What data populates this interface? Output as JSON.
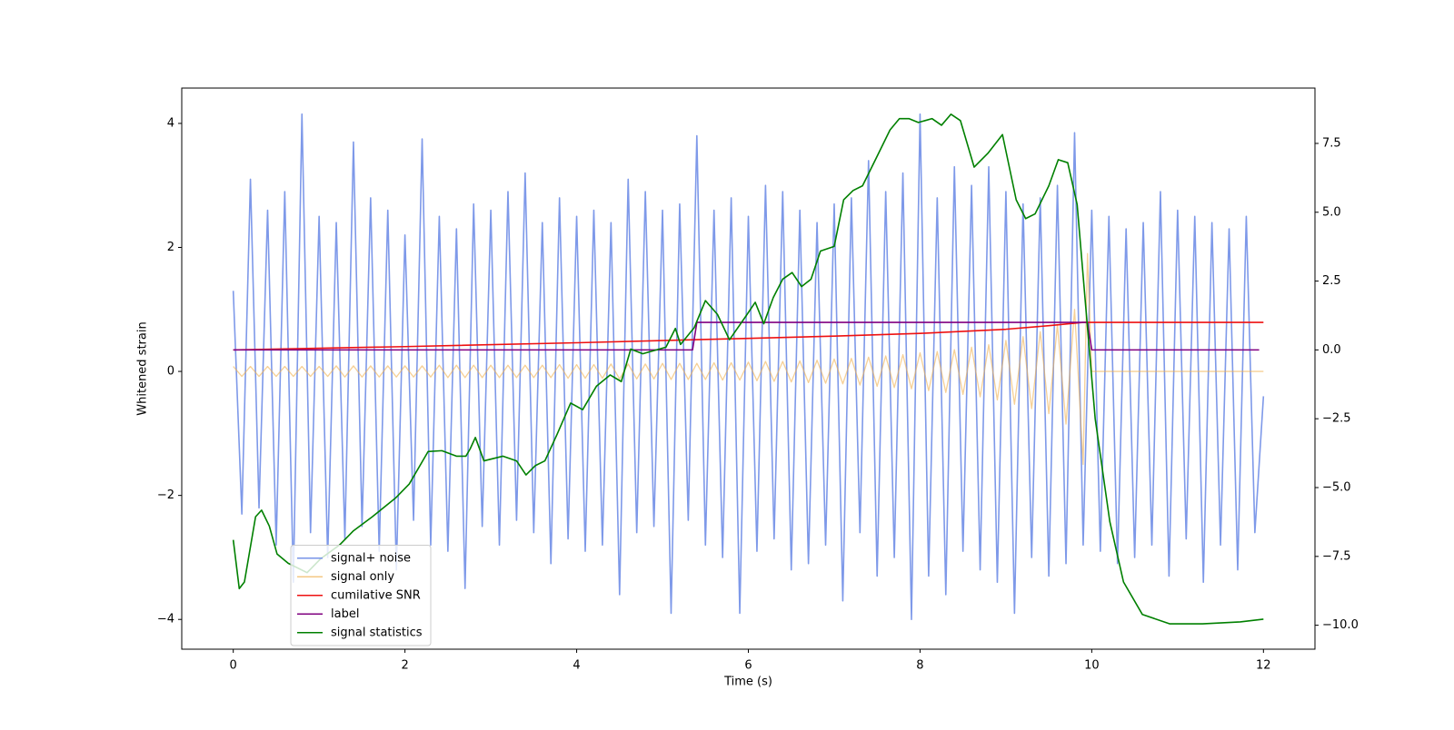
{
  "chart_data": {
    "type": "line",
    "x_label": "Time (s)",
    "y_label": "Whitened strain",
    "xlim": [
      -0.6,
      12.6
    ],
    "xticks": [
      0,
      2,
      4,
      6,
      8,
      10,
      12
    ],
    "ylim": [
      -4.48,
      4.57
    ],
    "yticks": [
      {
        "value": -4,
        "label": "−4"
      },
      {
        "value": -2,
        "label": "−2"
      },
      0,
      2,
      4
    ],
    "y2lim": [
      -10.87,
      9.51
    ],
    "y2ticks": [
      {
        "value": -10,
        "label": "−10.0"
      },
      {
        "value": -7.5,
        "label": "−7.5"
      },
      {
        "value": -5,
        "label": "−5.0"
      },
      {
        "value": -2.5,
        "label": "−2.5"
      },
      {
        "value": 0,
        "label": "0.0"
      },
      {
        "value": 2.5,
        "label": "2.5"
      },
      {
        "value": 5,
        "label": "5.0"
      },
      {
        "value": 7.5,
        "label": "7.5"
      }
    ],
    "grid": false,
    "legend": "lower left",
    "series": [
      {
        "name": "signal+ noise",
        "color": "#7793e8",
        "x": [
          0,
          0.1,
          0.2,
          0.3,
          0.4,
          0.5,
          0.6,
          0.7,
          0.8,
          0.9,
          1,
          1.1,
          1.2,
          1.3,
          1.4,
          1.5,
          1.6,
          1.7,
          1.8,
          1.9,
          2,
          2.1,
          2.2,
          2.3,
          2.4,
          2.5,
          2.6,
          2.7,
          2.8,
          2.9,
          3,
          3.1,
          3.2,
          3.3,
          3.4,
          3.5,
          3.6,
          3.7,
          3.8,
          3.9,
          4,
          4.1,
          4.2,
          4.3,
          4.4,
          4.5,
          4.6,
          4.7,
          4.8,
          4.9,
          5,
          5.1,
          5.2,
          5.3,
          5.4,
          5.5,
          5.6,
          5.7,
          5.8,
          5.9,
          6,
          6.1,
          6.2,
          6.3,
          6.4,
          6.5,
          6.6,
          6.7,
          6.8,
          6.9,
          7,
          7.1,
          7.2,
          7.3,
          7.4,
          7.5,
          7.6,
          7.7,
          7.8,
          7.9,
          8,
          8.1,
          8.2,
          8.3,
          8.4,
          8.5,
          8.6,
          8.7,
          8.8,
          8.9,
          9,
          9.1,
          9.2,
          9.3,
          9.4,
          9.5,
          9.6,
          9.7,
          9.8,
          9.9,
          10,
          10.1,
          10.2,
          10.3,
          10.4,
          10.5,
          10.6,
          10.7,
          10.8,
          10.9,
          11,
          11.1,
          11.2,
          11.3,
          11.4,
          11.5,
          11.6,
          11.7,
          11.8,
          11.9,
          12
        ],
        "values": [
          1.3,
          -2.3,
          3.1,
          -2.2,
          2.6,
          -2.8,
          2.9,
          -3.4,
          4.15,
          -2.6,
          2.5,
          -3.0,
          2.4,
          -2.7,
          3.7,
          -2.5,
          2.8,
          -2.9,
          2.6,
          -3.2,
          2.2,
          -2.4,
          3.75,
          -2.8,
          2.5,
          -2.9,
          2.3,
          -3.5,
          2.7,
          -2.5,
          2.6,
          -2.8,
          2.9,
          -2.4,
          3.2,
          -2.6,
          2.4,
          -3.1,
          2.8,
          -2.7,
          2.5,
          -2.9,
          2.6,
          -2.8,
          2.4,
          -3.6,
          3.1,
          -2.6,
          2.9,
          -2.5,
          2.6,
          -3.9,
          2.7,
          -2.4,
          3.8,
          -2.8,
          2.6,
          -3.0,
          2.8,
          -3.9,
          2.5,
          -2.9,
          3.0,
          -2.7,
          2.9,
          -3.2,
          2.6,
          -3.1,
          2.4,
          -2.8,
          2.7,
          -3.7,
          2.8,
          -2.6,
          3.4,
          -3.3,
          2.9,
          -3.0,
          3.2,
          -4.0,
          4.15,
          -3.3,
          2.8,
          -3.6,
          3.3,
          -2.9,
          3.0,
          -3.2,
          3.3,
          -3.4,
          2.9,
          -3.9,
          2.7,
          -3.0,
          2.8,
          -3.3,
          3.0,
          -3.1,
          3.85,
          -2.8,
          2.6,
          -2.9,
          2.5,
          -3.1,
          2.3,
          -3.0,
          2.4,
          -2.8,
          2.9,
          -3.3,
          2.6,
          -2.7,
          2.5,
          -3.4,
          2.4,
          -2.8,
          2.3,
          -3.2,
          2.5,
          -2.6,
          -0.4
        ]
      },
      {
        "name": "signal only",
        "color": "#f0b050",
        "x": [
          0,
          0.1,
          0.2,
          0.3,
          0.4,
          0.5,
          0.6,
          0.7,
          0.8,
          0.9,
          1,
          1.1,
          1.2,
          1.3,
          1.4,
          1.5,
          1.6,
          1.7,
          1.8,
          1.9,
          2,
          2.1,
          2.2,
          2.3,
          2.4,
          2.5,
          2.6,
          2.7,
          2.8,
          2.9,
          3,
          3.1,
          3.2,
          3.3,
          3.4,
          3.5,
          3.6,
          3.7,
          3.8,
          3.9,
          4,
          4.1,
          4.2,
          4.3,
          4.4,
          4.5,
          4.6,
          4.7,
          4.8,
          4.9,
          5,
          5.1,
          5.2,
          5.3,
          5.4,
          5.5,
          5.6,
          5.7,
          5.8,
          5.9,
          6,
          6.1,
          6.2,
          6.3,
          6.4,
          6.5,
          6.6,
          6.7,
          6.8,
          6.9,
          7,
          7.1,
          7.2,
          7.3,
          7.4,
          7.5,
          7.6,
          7.7,
          7.8,
          7.9,
          8,
          8.1,
          8.2,
          8.3,
          8.4,
          8.5,
          8.6,
          8.7,
          8.8,
          8.9,
          9,
          9.1,
          9.2,
          9.3,
          9.4,
          9.5,
          9.6,
          9.7,
          9.8,
          9.9,
          9.95,
          10,
          12
        ],
        "values": [
          0.08,
          -0.08,
          0.08,
          -0.08,
          0.08,
          -0.08,
          0.08,
          -0.08,
          0.08,
          -0.08,
          0.08,
          -0.08,
          0.09,
          -0.09,
          0.09,
          -0.09,
          0.09,
          -0.09,
          0.09,
          -0.09,
          0.09,
          -0.09,
          0.09,
          -0.09,
          0.1,
          -0.1,
          0.1,
          -0.1,
          0.1,
          -0.1,
          0.1,
          -0.1,
          0.1,
          -0.1,
          0.1,
          -0.1,
          0.1,
          -0.1,
          0.11,
          -0.11,
          0.11,
          -0.11,
          0.11,
          -0.11,
          0.12,
          -0.12,
          0.12,
          -0.12,
          0.12,
          -0.12,
          0.13,
          -0.13,
          0.13,
          -0.13,
          0.13,
          -0.13,
          0.14,
          -0.14,
          0.14,
          -0.14,
          0.15,
          -0.15,
          0.16,
          -0.16,
          0.16,
          -0.17,
          0.17,
          -0.18,
          0.18,
          -0.19,
          0.2,
          -0.2,
          0.21,
          -0.22,
          0.23,
          -0.24,
          0.25,
          -0.26,
          0.27,
          -0.28,
          0.3,
          -0.31,
          0.32,
          -0.34,
          0.35,
          -0.37,
          0.39,
          -0.41,
          0.43,
          -0.46,
          0.5,
          -0.53,
          0.56,
          -0.6,
          0.64,
          -0.68,
          0.75,
          -0.85,
          1.0,
          -1.5,
          1.9,
          0,
          0
        ]
      },
      {
        "name": "cumilative SNR",
        "color": "#ee1111",
        "axis": "y2",
        "x": [
          0,
          2,
          4,
          6,
          7,
          8,
          9,
          9.5,
          9.9,
          10,
          12
        ],
        "values": [
          0,
          0.12,
          0.26,
          0.42,
          0.5,
          0.6,
          0.75,
          0.88,
          1,
          1,
          1
        ]
      },
      {
        "name": "label",
        "color": "#800080",
        "axis": "y2",
        "x": [
          0,
          5.35,
          5.4,
          9.95,
          10,
          11.95
        ],
        "values": [
          0,
          0,
          1,
          1,
          0,
          0
        ]
      },
      {
        "name": "signal statistics",
        "color": "#008000",
        "axis": "y2",
        "x": [
          0,
          0.07,
          0.13,
          0.26,
          0.33,
          0.42,
          0.51,
          0.64,
          0.86,
          1.02,
          1.24,
          1.4,
          1.62,
          1.89,
          2.05,
          2.27,
          2.43,
          2.6,
          2.71,
          2.76,
          2.82,
          2.92,
          3.14,
          3.3,
          3.41,
          3.52,
          3.63,
          3.77,
          3.93,
          4.07,
          4.23,
          4.39,
          4.52,
          4.63,
          4.77,
          5.04,
          5.15,
          5.21,
          5.37,
          5.5,
          5.64,
          5.78,
          5.97,
          6.08,
          6.18,
          6.29,
          6.4,
          6.51,
          6.62,
          6.73,
          6.84,
          7.0,
          7.11,
          7.22,
          7.33,
          7.49,
          7.65,
          7.76,
          7.87,
          7.98,
          8.14,
          8.25,
          8.36,
          8.47,
          8.63,
          8.79,
          8.96,
          9.12,
          9.23,
          9.34,
          9.5,
          9.61,
          9.72,
          9.83,
          9.93,
          10.04,
          10.21,
          10.37,
          10.59,
          10.91,
          11.29,
          11.73,
          12.0
        ],
        "values": [
          -6.9,
          -8.67,
          -8.43,
          -6.06,
          -5.82,
          -6.4,
          -7.41,
          -7.75,
          -8.09,
          -7.58,
          -7.08,
          -6.57,
          -6.06,
          -5.38,
          -4.87,
          -3.69,
          -3.66,
          -3.86,
          -3.86,
          -3.59,
          -3.18,
          -4.03,
          -3.86,
          -4.03,
          -4.54,
          -4.2,
          -4.03,
          -3.08,
          -1.93,
          -2.17,
          -1.32,
          -0.91,
          -1.15,
          0.03,
          -0.14,
          0.1,
          0.78,
          0.2,
          0.81,
          1.79,
          1.29,
          0.37,
          1.22,
          1.73,
          0.95,
          1.9,
          2.57,
          2.81,
          2.3,
          2.57,
          3.59,
          3.76,
          5.45,
          5.79,
          5.96,
          6.97,
          7.99,
          8.4,
          8.4,
          8.26,
          8.4,
          8.16,
          8.56,
          8.33,
          6.64,
          7.14,
          7.82,
          5.45,
          4.77,
          4.94,
          5.96,
          6.91,
          6.8,
          5.28,
          1.56,
          -2.5,
          -6.23,
          -8.43,
          -9.61,
          -9.95,
          -9.95,
          -9.88,
          -9.78
        ]
      }
    ]
  }
}
